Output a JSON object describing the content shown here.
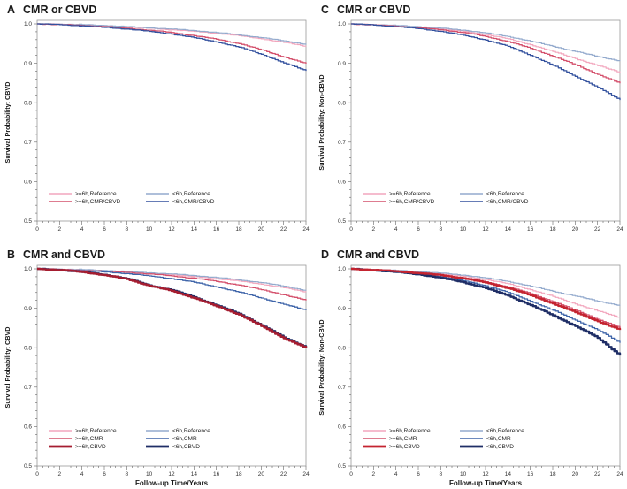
{
  "figure": {
    "background": "#ffffff",
    "frame_color": "#9a9a9a",
    "tick_color": "#666666",
    "tick_label_color": "#333333",
    "title_color": "#1a1a1a"
  },
  "chart_data": [
    {
      "id": "A",
      "type": "line",
      "label": "A",
      "title": "CMR or CBVD",
      "ylabel": "Survival Probability: CBVD",
      "xlabel": "",
      "xlim": [
        0,
        24
      ],
      "ylim": [
        0.5,
        1.0
      ],
      "xticks": [
        0,
        2,
        4,
        6,
        8,
        10,
        12,
        14,
        16,
        18,
        20,
        22,
        24
      ],
      "yticks": [
        0.5,
        0.6,
        0.7,
        0.8,
        0.9,
        1.0
      ],
      "grid": false,
      "legend_position": "bottom-left-inside",
      "x": [
        0,
        2,
        4,
        6,
        8,
        10,
        12,
        14,
        16,
        18,
        20,
        22,
        24
      ],
      "series": [
        {
          "name": ">=6h,Reference",
          "color": "#F2A6BD",
          "width": 1.2,
          "values": [
            1.0,
            0.999,
            0.997,
            0.995,
            0.992,
            0.989,
            0.985,
            0.981,
            0.976,
            0.97,
            0.962,
            0.953,
            0.943
          ]
        },
        {
          "name": "<6h,Reference",
          "color": "#93AACD",
          "width": 1.2,
          "values": [
            1.0,
            0.999,
            0.998,
            0.996,
            0.993,
            0.99,
            0.987,
            0.983,
            0.978,
            0.972,
            0.965,
            0.957,
            0.948
          ]
        },
        {
          "name": ">=6h,CMR/CBVD",
          "color": "#D4506C",
          "width": 1.3,
          "values": [
            1.0,
            0.998,
            0.996,
            0.993,
            0.989,
            0.984,
            0.978,
            0.97,
            0.961,
            0.95,
            0.934,
            0.916,
            0.899
          ]
        },
        {
          "name": "<6h,CMR/CBVD",
          "color": "#33519E",
          "width": 1.3,
          "values": [
            1.0,
            0.998,
            0.995,
            0.991,
            0.987,
            0.981,
            0.974,
            0.965,
            0.954,
            0.941,
            0.923,
            0.901,
            0.881
          ]
        }
      ]
    },
    {
      "id": "C",
      "type": "line",
      "label": "C",
      "title": "CMR or CBVD",
      "ylabel": "Survival Probability: Non-CBVD",
      "xlabel": "",
      "xlim": [
        0,
        24
      ],
      "ylim": [
        0.5,
        1.0
      ],
      "xticks": [
        0,
        2,
        4,
        6,
        8,
        10,
        12,
        14,
        16,
        18,
        20,
        22,
        24
      ],
      "yticks": [
        0.5,
        0.6,
        0.7,
        0.8,
        0.9,
        1.0
      ],
      "grid": false,
      "legend_position": "bottom-left-inside",
      "x": [
        0,
        2,
        4,
        6,
        8,
        10,
        12,
        14,
        16,
        18,
        20,
        22,
        24
      ],
      "series": [
        {
          "name": ">=6h,Reference",
          "color": "#F2A6BD",
          "width": 1.2,
          "values": [
            1.0,
            0.998,
            0.995,
            0.992,
            0.987,
            0.981,
            0.973,
            0.962,
            0.947,
            0.93,
            0.912,
            0.894,
            0.877
          ]
        },
        {
          "name": "<6h,Reference",
          "color": "#93AACD",
          "width": 1.2,
          "values": [
            1.0,
            0.998,
            0.996,
            0.993,
            0.989,
            0.984,
            0.977,
            0.968,
            0.956,
            0.943,
            0.93,
            0.917,
            0.906
          ]
        },
        {
          "name": ">=6h,CMR/CBVD",
          "color": "#D4506C",
          "width": 1.3,
          "values": [
            1.0,
            0.997,
            0.994,
            0.99,
            0.985,
            0.978,
            0.968,
            0.955,
            0.938,
            0.918,
            0.896,
            0.872,
            0.849
          ]
        },
        {
          "name": "<6h,CMR/CBVD",
          "color": "#33519E",
          "width": 1.3,
          "values": [
            1.0,
            0.997,
            0.993,
            0.988,
            0.981,
            0.971,
            0.959,
            0.943,
            0.92,
            0.895,
            0.867,
            0.839,
            0.807
          ]
        }
      ]
    },
    {
      "id": "B",
      "type": "line",
      "label": "B",
      "title": "CMR and CBVD",
      "ylabel": "Survival Probability: CBVD",
      "xlabel": "Follow-up Time/Years",
      "xlim": [
        0,
        24
      ],
      "ylim": [
        0.5,
        1.0
      ],
      "xticks": [
        0,
        2,
        4,
        6,
        8,
        10,
        12,
        14,
        16,
        18,
        20,
        22,
        24
      ],
      "yticks": [
        0.5,
        0.6,
        0.7,
        0.8,
        0.9,
        1.0
      ],
      "grid": false,
      "legend_position": "bottom-left-inside",
      "x": [
        0,
        2,
        4,
        6,
        8,
        10,
        12,
        14,
        16,
        18,
        20,
        22,
        24
      ],
      "series": [
        {
          "name": ">=6h,Reference",
          "color": "#F2A6BD",
          "width": 1.2,
          "values": [
            1.0,
            0.999,
            0.997,
            0.995,
            0.992,
            0.989,
            0.985,
            0.98,
            0.975,
            0.969,
            0.961,
            0.952,
            0.941
          ]
        },
        {
          "name": "<6h,Reference",
          "color": "#93AACD",
          "width": 1.2,
          "values": [
            1.0,
            0.999,
            0.998,
            0.996,
            0.993,
            0.99,
            0.987,
            0.983,
            0.978,
            0.972,
            0.965,
            0.956,
            0.945
          ]
        },
        {
          "name": ">=6h,CMR",
          "color": "#D4506C",
          "width": 1.3,
          "values": [
            1.0,
            0.998,
            0.996,
            0.994,
            0.991,
            0.987,
            0.982,
            0.976,
            0.968,
            0.959,
            0.947,
            0.934,
            0.92
          ]
        },
        {
          "name": "<6h,CMR",
          "color": "#3E64A9",
          "width": 1.3,
          "values": [
            1.0,
            0.998,
            0.995,
            0.992,
            0.988,
            0.982,
            0.975,
            0.966,
            0.954,
            0.941,
            0.926,
            0.91,
            0.895
          ]
        },
        {
          "name": "<6h,CBVD",
          "color": "#1F2E66",
          "width": 2.4,
          "values": [
            1.0,
            0.997,
            0.992,
            0.985,
            0.975,
            0.958,
            0.946,
            0.928,
            0.907,
            0.886,
            0.857,
            0.826,
            0.801
          ]
        },
        {
          "name": ">=6h,CBVD",
          "color": "#A51D30",
          "width": 2.4,
          "values": [
            1.0,
            0.997,
            0.992,
            0.984,
            0.974,
            0.957,
            0.944,
            0.926,
            0.905,
            0.884,
            0.855,
            0.824,
            0.799
          ]
        }
      ]
    },
    {
      "id": "D",
      "type": "line",
      "label": "D",
      "title": "CMR and CBVD",
      "ylabel": "Survival Probability: Non-CBVD",
      "xlabel": "Follow-up Time/Years",
      "xlim": [
        0,
        24
      ],
      "ylim": [
        0.5,
        1.0
      ],
      "xticks": [
        0,
        2,
        4,
        6,
        8,
        10,
        12,
        14,
        16,
        18,
        20,
        22,
        24
      ],
      "yticks": [
        0.5,
        0.6,
        0.7,
        0.8,
        0.9,
        1.0
      ],
      "grid": false,
      "legend_position": "bottom-left-inside",
      "x": [
        0,
        2,
        4,
        6,
        8,
        10,
        12,
        14,
        16,
        18,
        20,
        22,
        24
      ],
      "series": [
        {
          "name": ">=6h,Reference",
          "color": "#F2A6BD",
          "width": 1.2,
          "values": [
            1.0,
            0.998,
            0.995,
            0.992,
            0.987,
            0.981,
            0.973,
            0.962,
            0.947,
            0.93,
            0.911,
            0.893,
            0.876
          ]
        },
        {
          "name": "<6h,Reference",
          "color": "#93AACD",
          "width": 1.2,
          "values": [
            1.0,
            0.998,
            0.996,
            0.993,
            0.989,
            0.984,
            0.977,
            0.968,
            0.956,
            0.943,
            0.931,
            0.918,
            0.907
          ]
        },
        {
          "name": ">=6h,CMR",
          "color": "#D4506C",
          "width": 1.3,
          "values": [
            1.0,
            0.997,
            0.994,
            0.99,
            0.985,
            0.977,
            0.967,
            0.954,
            0.937,
            0.917,
            0.895,
            0.872,
            0.851
          ]
        },
        {
          "name": "<6h,CMR",
          "color": "#3E64A9",
          "width": 1.3,
          "values": [
            1.0,
            0.997,
            0.993,
            0.988,
            0.98,
            0.97,
            0.957,
            0.94,
            0.918,
            0.895,
            0.87,
            0.845,
            0.812
          ]
        },
        {
          "name": "<6h,CBVD",
          "color": "#1F2E66",
          "width": 2.4,
          "values": [
            1.0,
            0.996,
            0.992,
            0.986,
            0.977,
            0.966,
            0.951,
            0.932,
            0.908,
            0.882,
            0.855,
            0.825,
            0.78
          ]
        },
        {
          "name": ">=6h,CBVD",
          "color": "#C42430",
          "width": 2.4,
          "values": [
            1.0,
            0.997,
            0.994,
            0.989,
            0.984,
            0.976,
            0.965,
            0.951,
            0.933,
            0.912,
            0.89,
            0.867,
            0.845
          ]
        }
      ]
    }
  ]
}
